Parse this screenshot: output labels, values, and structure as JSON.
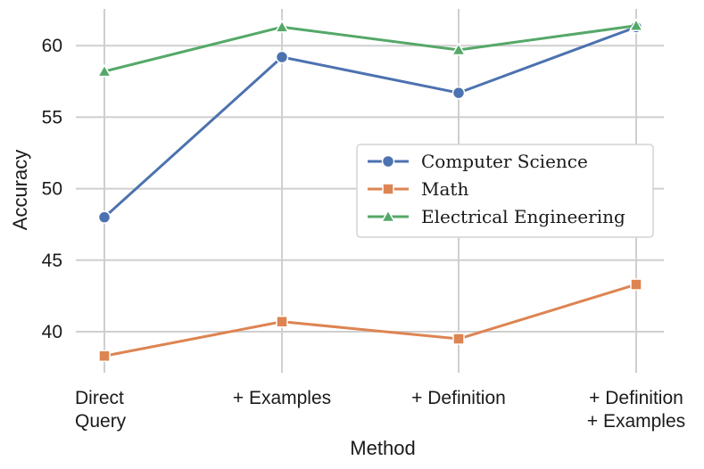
{
  "chart_data": {
    "type": "line",
    "title": "",
    "xlabel": "Method",
    "ylabel": "Accuracy",
    "categories": [
      [
        "Direct",
        "Query"
      ],
      [
        "+ Examples"
      ],
      [
        "+ Definition"
      ],
      [
        "+ Definition",
        "+ Examples"
      ]
    ],
    "yticks": [
      40,
      45,
      50,
      55,
      60
    ],
    "ylim": [
      37,
      63
    ],
    "grid": true,
    "legend_position": "center-right",
    "series": [
      {
        "name": "Computer Science",
        "color": "#4c72b0",
        "marker": "circle",
        "values": [
          48.0,
          59.2,
          56.7,
          61.3
        ]
      },
      {
        "name": "Math",
        "color": "#dd8452",
        "marker": "square",
        "values": [
          38.3,
          40.7,
          39.5,
          43.3
        ]
      },
      {
        "name": "Electrical Engineering",
        "color": "#55a868",
        "marker": "triangle",
        "values": [
          58.2,
          61.3,
          59.7,
          61.4
        ]
      }
    ]
  }
}
